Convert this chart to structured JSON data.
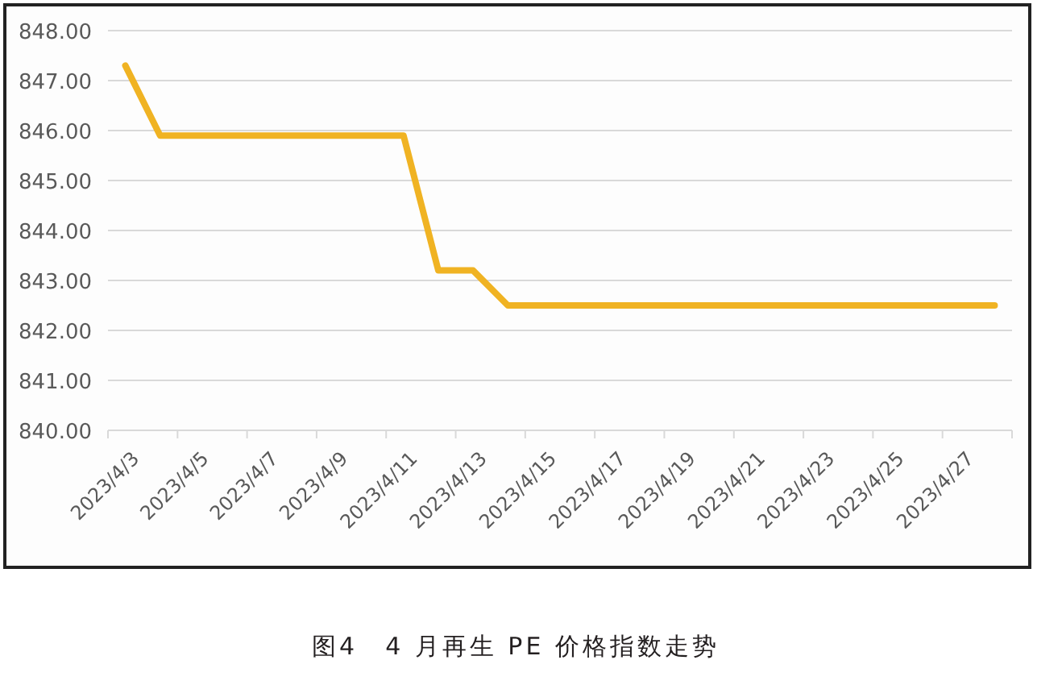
{
  "chart_data": {
    "type": "line",
    "categories": [
      "2023/4/3",
      null,
      "2023/4/5",
      null,
      "2023/4/7",
      null,
      "2023/4/9",
      null,
      "2023/4/11",
      null,
      "2023/4/13",
      null,
      "2023/4/15",
      null,
      "2023/4/17",
      null,
      "2023/4/19",
      null,
      "2023/4/21",
      null,
      "2023/4/23",
      null,
      "2023/4/25",
      null,
      "2023/4/27",
      null
    ],
    "series": [
      {
        "color": "#f0b323",
        "values": [
          847.3,
          845.9,
          845.9,
          845.9,
          845.9,
          845.9,
          845.9,
          845.9,
          845.9,
          843.2,
          843.2,
          842.5,
          842.5,
          842.5,
          842.5,
          842.5,
          842.5,
          842.5,
          842.5,
          842.5,
          842.5,
          842.5,
          842.5,
          842.5,
          842.5,
          842.5
        ]
      }
    ],
    "ylim": [
      840,
      848
    ],
    "yticks": [
      {
        "value": 840,
        "label": "840.00"
      },
      {
        "value": 841,
        "label": "841.00"
      },
      {
        "value": 842,
        "label": "842.00"
      },
      {
        "value": 843,
        "label": "843.00"
      },
      {
        "value": 844,
        "label": "844.00"
      },
      {
        "value": 845,
        "label": "845.00"
      },
      {
        "value": 846,
        "label": "846.00"
      },
      {
        "value": 847,
        "label": "847.00"
      },
      {
        "value": 848,
        "label": "848.00"
      }
    ],
    "grid": "y",
    "marker": "none",
    "line_style": "solid",
    "annotations": [
      "图4　4 月再生 PE 价格指数走势"
    ]
  }
}
